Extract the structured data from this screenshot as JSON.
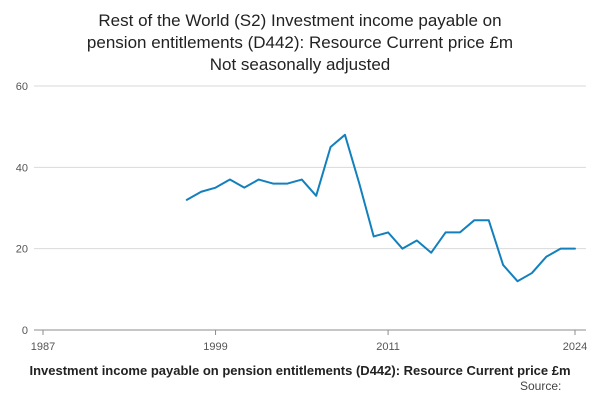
{
  "header": {
    "title_lines": [
      "Rest of the World (S2) Investment income payable on",
      "pension entitlements (D442): Resource Current price £m",
      "Not seasonally adjusted"
    ]
  },
  "chart_data": {
    "type": "line",
    "title": "Rest of the World (S2) Investment income payable on pension entitlements (D442): Resource Current price £m Not seasonally adjusted",
    "x": [
      1997,
      1998,
      1999,
      2000,
      2001,
      2002,
      2003,
      2004,
      2005,
      2006,
      2007,
      2008,
      2009,
      2010,
      2011,
      2012,
      2013,
      2014,
      2015,
      2016,
      2017,
      2018,
      2019,
      2020,
      2021,
      2022,
      2023,
      2024
    ],
    "values": [
      32,
      34,
      35,
      37,
      35,
      37,
      36,
      36,
      37,
      33,
      45,
      48,
      36,
      23,
      24,
      20,
      22,
      19,
      24,
      24,
      27,
      27,
      16,
      12,
      14,
      18,
      20,
      20
    ],
    "xlabel": "",
    "ylabel": "",
    "xlim": [
      1987,
      2024
    ],
    "ylim": [
      0,
      60
    ],
    "x_ticks": [
      1987,
      1999,
      2011,
      2024
    ],
    "y_ticks": [
      0,
      20,
      40,
      60
    ],
    "grid": "horizontal",
    "legend": "none",
    "line_color": "#1380be",
    "grid_color": "#d9d9d9",
    "axis_color": "#8c8c8c",
    "tick_color": "#555555"
  },
  "footer": {
    "caption": "Investment income payable on pension entitlements (D442): Resource Current price £m",
    "source_label": "Source:"
  }
}
